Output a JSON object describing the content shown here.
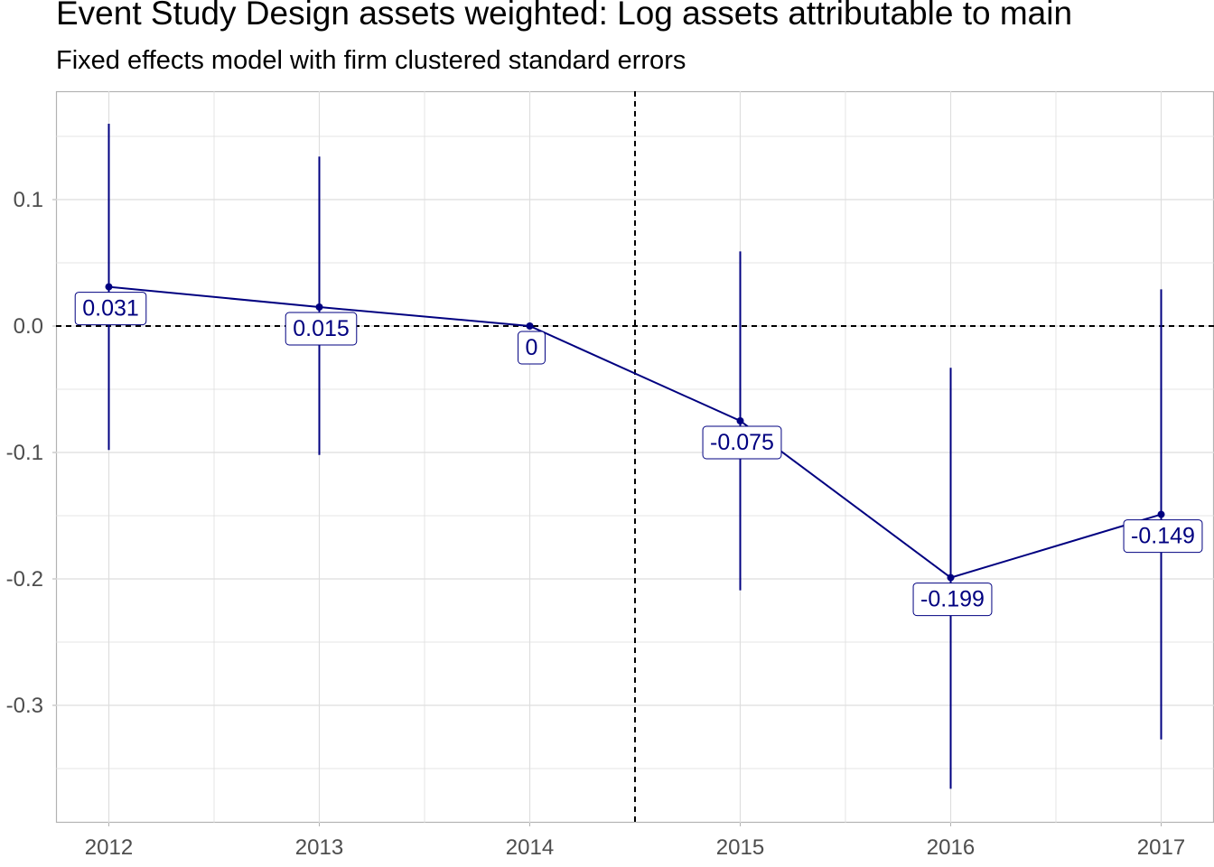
{
  "chart_data": {
    "type": "line",
    "title": "Event Study Design assets weighted: Log assets attributable to main",
    "subtitle": "Fixed effects model with firm clustered standard errors",
    "xlabel": "",
    "ylabel": "",
    "categories": [
      "2012",
      "2013",
      "2014",
      "2015",
      "2016",
      "2017"
    ],
    "series": [
      {
        "values": [
          0.031,
          0.015,
          0,
          -0.075,
          -0.199,
          -0.149
        ],
        "ci_lower": [
          -0.098,
          -0.102,
          0,
          -0.209,
          -0.366,
          -0.327
        ],
        "ci_upper": [
          0.16,
          0.134,
          0,
          0.059,
          -0.033,
          0.029
        ],
        "data_labels": [
          "0.031",
          "0.015",
          "0",
          "-0.075",
          "-0.199",
          "-0.149"
        ]
      }
    ],
    "ylim": [
      -0.392,
      0.185
    ],
    "y_ticks": [
      0.1,
      0.0,
      -0.1,
      -0.2,
      -0.3
    ],
    "y_tick_labels": [
      "0.1",
      "0.0",
      "-0.1",
      "-0.2",
      "-0.3"
    ],
    "reference_lines": {
      "horizontal_y": 0,
      "vertical_x_between": [
        "2014",
        "2015"
      ]
    },
    "grid": true,
    "legend": "none",
    "colors": {
      "series": "#000080",
      "reference": "#000000",
      "grid": "#dedede",
      "tick_text": "#4d4d4d"
    }
  }
}
